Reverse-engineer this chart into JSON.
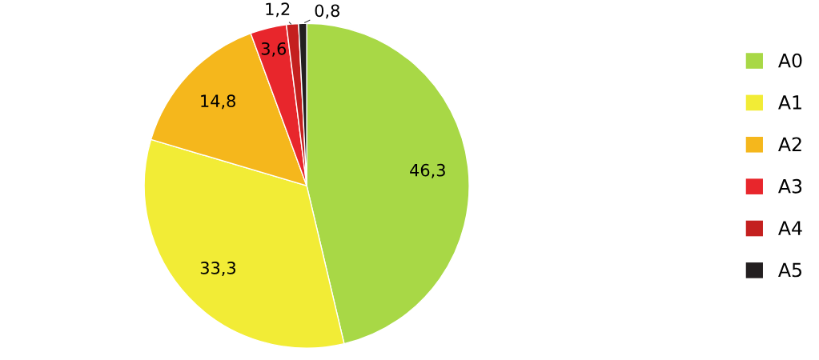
{
  "chart_data": {
    "type": "pie",
    "categories": [
      "A0",
      "A1",
      "A2",
      "A3",
      "A4",
      "A5"
    ],
    "values": [
      46.3,
      33.3,
      14.8,
      3.6,
      1.2,
      0.8
    ],
    "value_labels": [
      "46,3",
      "33,3",
      "14,8",
      "3,6",
      "1,2",
      "0,8"
    ],
    "colors": [
      "#a8d846",
      "#f2ec36",
      "#f5b71c",
      "#e8262c",
      "#c4201f",
      "#231f20"
    ],
    "legend": "right"
  }
}
